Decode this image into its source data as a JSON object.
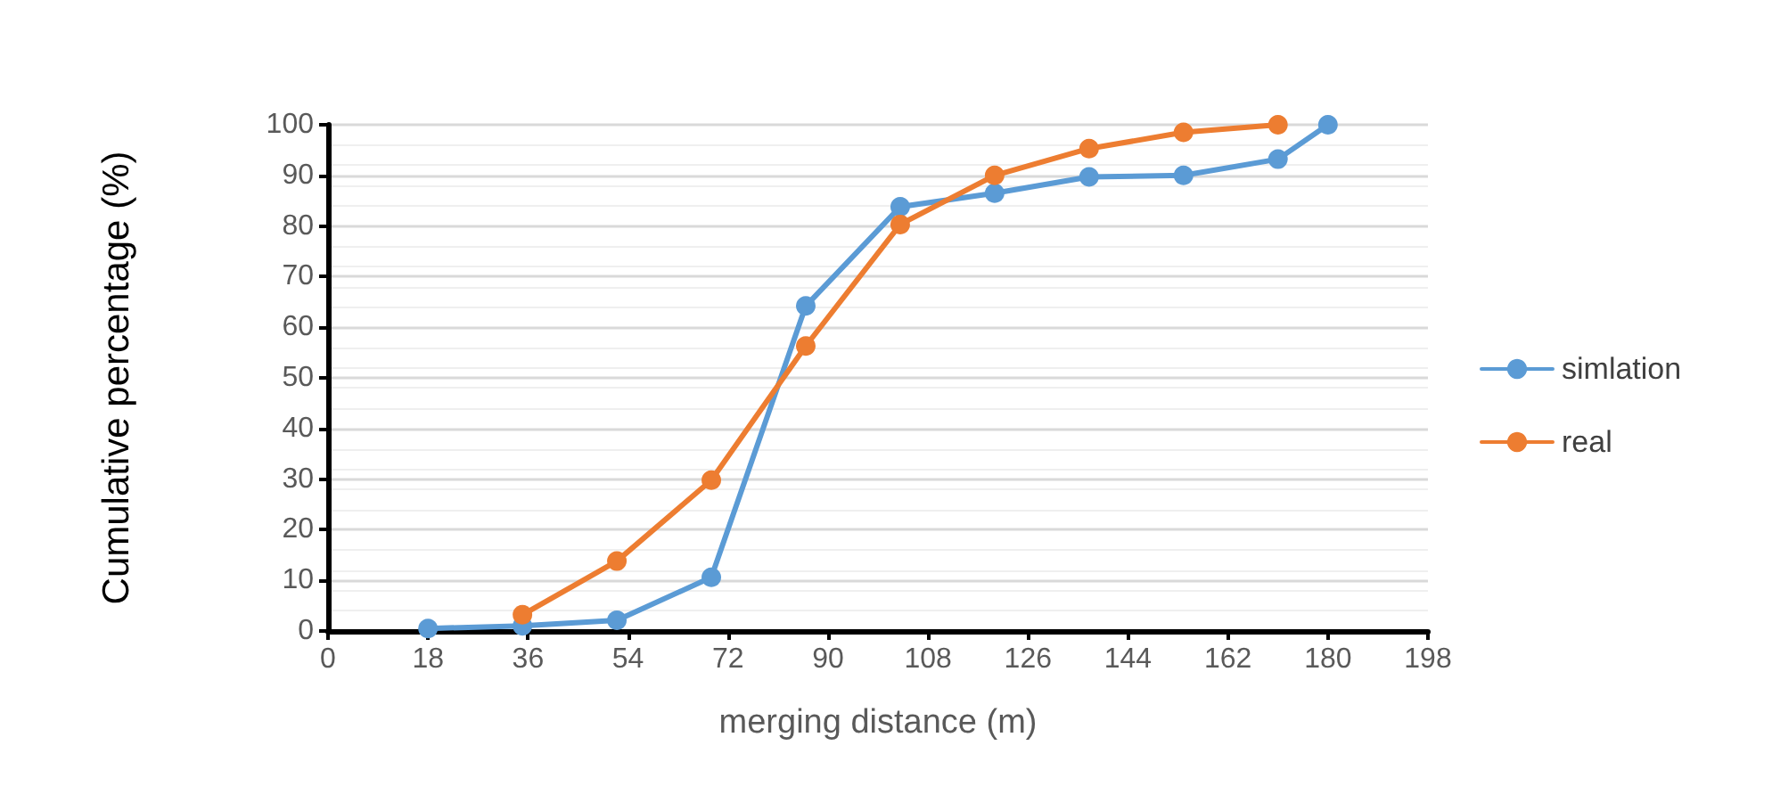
{
  "chart_data": {
    "type": "line",
    "xlabel": "merging distance (m)",
    "ylabel": "Cumulative percentage (%)",
    "series": [
      {
        "name": "simlation",
        "color": "#5b9bd5",
        "x": [
          18,
          35,
          52,
          69,
          86,
          103,
          120,
          137,
          154,
          171,
          180
        ],
        "values": [
          0.5,
          1,
          2.1,
          10.6,
          64.2,
          83.8,
          86.5,
          89.7,
          90,
          93.2,
          100
        ]
      },
      {
        "name": "real",
        "color": "#ed7d31",
        "x": [
          35,
          52,
          69,
          86,
          103,
          120,
          137,
          154,
          171
        ],
        "values": [
          3.2,
          13.8,
          29.8,
          56.3,
          80.3,
          90,
          95.3,
          98.5,
          100
        ]
      }
    ],
    "xlim": [
      0,
      198
    ],
    "xticks": [
      0,
      18,
      36,
      54,
      72,
      90,
      108,
      126,
      144,
      162,
      180,
      198
    ],
    "ylim": [
      0,
      100
    ],
    "yticks": [
      0,
      10,
      20,
      30,
      40,
      50,
      60,
      70,
      80,
      90,
      100
    ],
    "grid": "y",
    "legend": "right",
    "marker": "circle",
    "line_style": "solid"
  }
}
